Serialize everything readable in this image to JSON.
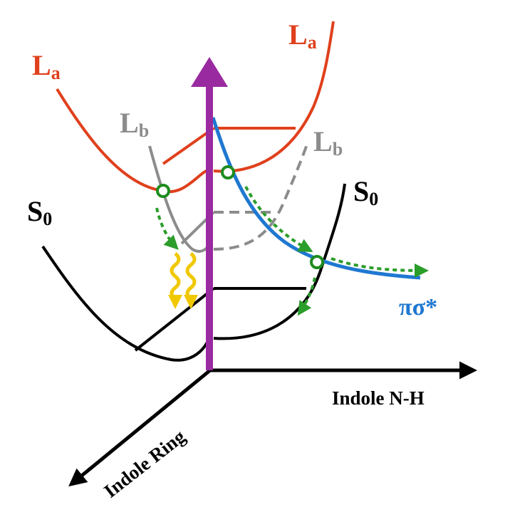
{
  "colors": {
    "La": "#e0401c",
    "Lb": "#8c8c8c",
    "S0": "#000000",
    "pisigma": "#1f78d1",
    "excitation_arrow": "#9a2aa0",
    "crossing_marker": "#1e8c1e",
    "relaxation_arrow": "#2a9d2a",
    "emission": "#f0c800",
    "axes": "#000000"
  },
  "labels": {
    "La_left": {
      "main": "L",
      "sub": "a"
    },
    "La_right": {
      "main": "L",
      "sub": "a"
    },
    "Lb_left": {
      "main": "L",
      "sub": "b"
    },
    "Lb_right": {
      "main": "L",
      "sub": "b"
    },
    "S0_left": {
      "main": "S",
      "sub": "0"
    },
    "S0_right": {
      "main": "S",
      "sub": "0"
    },
    "pisigma": "πσ*"
  },
  "axes": {
    "x_label": "Indole N-H",
    "y_label": "Indole Ring"
  },
  "icons": {
    "crossing": "circle-marker",
    "excitation": "up-arrow",
    "emission": "wavy-arrow"
  }
}
